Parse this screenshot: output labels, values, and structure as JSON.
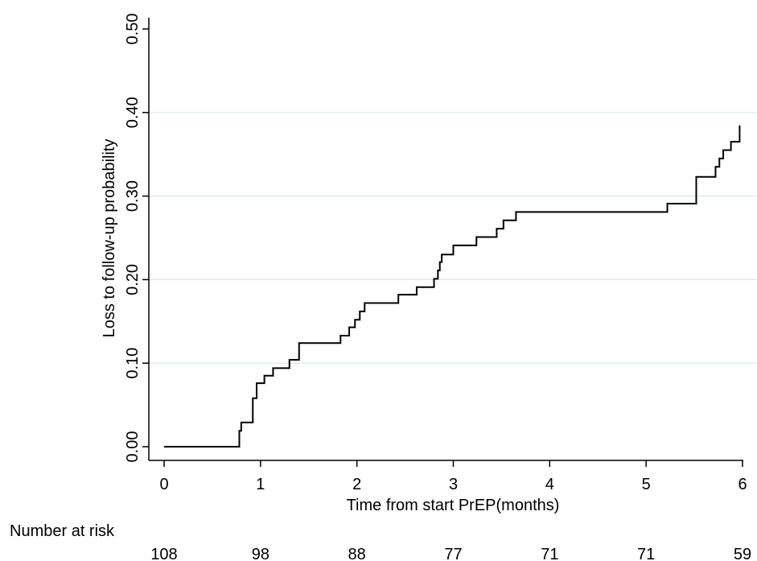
{
  "chart_data": {
    "type": "line",
    "subtype": "kaplan-meier-step",
    "title": "",
    "xlabel": "Time from start PrEP(months)",
    "ylabel": "Loss to follow-up probability",
    "xlim": [
      0,
      6
    ],
    "ylim": [
      0,
      0.5
    ],
    "x_ticks": [
      0,
      1,
      2,
      3,
      4,
      5,
      6
    ],
    "x_tick_labels": [
      "0",
      "1",
      "2",
      "3",
      "4",
      "5",
      "6"
    ],
    "y_ticks": [
      0,
      0.1,
      0.2,
      0.3,
      0.4,
      0.5
    ],
    "y_tick_labels": [
      "0.00",
      "0.10",
      "0.20",
      "0.30",
      "0.40",
      "0.50"
    ],
    "grid": "horizontal",
    "legend": "none",
    "series": [
      {
        "color": "#000000",
        "x": [
          0,
          0.78,
          0.8,
          0.83,
          0.92,
          0.96,
          1.04,
          1.13,
          1.3,
          1.4,
          1.83,
          1.92,
          1.98,
          2.03,
          2.08,
          2.13,
          2.43,
          2.62,
          2.8,
          2.84,
          2.86,
          2.88,
          2.9,
          2.92,
          3.0,
          3.24,
          3.45,
          3.52,
          3.65,
          5.22,
          5.52,
          5.72,
          5.76,
          5.8,
          5.88,
          5.97
        ],
        "y": [
          0,
          0.019,
          0.029,
          0.029,
          0.058,
          0.076,
          0.085,
          0.094,
          0.104,
          0.124,
          0.133,
          0.143,
          0.152,
          0.162,
          0.172,
          0.172,
          0.182,
          0.191,
          0.201,
          0.211,
          0.221,
          0.23,
          0.23,
          0.23,
          0.241,
          0.251,
          0.261,
          0.271,
          0.281,
          0.291,
          0.323,
          0.335,
          0.345,
          0.355,
          0.365,
          0.375
        ]
      }
    ],
    "risk_table": {
      "label": "Number at risk",
      "times": [
        0,
        1,
        2,
        3,
        4,
        5,
        6
      ],
      "values": [
        "108",
        "98",
        "88",
        "77",
        "71",
        "71",
        "59"
      ]
    }
  }
}
